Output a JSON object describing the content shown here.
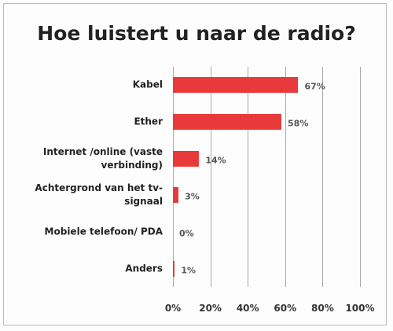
{
  "chart_data": {
    "type": "barh",
    "title": "Hoe luistert u naar de radio?",
    "categories": [
      "Kabel",
      "Ether",
      "Internet /online (vaste verbinding)",
      "Achtergrond van het tv-signaal",
      "Mobiele telefoon/ PDA",
      "Anders"
    ],
    "values": [
      67,
      58,
      14,
      3,
      0,
      1
    ],
    "value_labels": [
      "67%",
      "58%",
      "14%",
      "3%",
      "0%",
      "1%"
    ],
    "color": "#e83a3a",
    "xlim": [
      0,
      100
    ],
    "xticks": [
      {
        "value": 0,
        "label": "0%"
      },
      {
        "value": 20,
        "label": "20%"
      },
      {
        "value": 40,
        "label": "40%"
      },
      {
        "value": 60,
        "label": "60%"
      },
      {
        "value": 80,
        "label": "80%"
      },
      {
        "value": 100,
        "label": "100%"
      }
    ],
    "grid": true
  }
}
